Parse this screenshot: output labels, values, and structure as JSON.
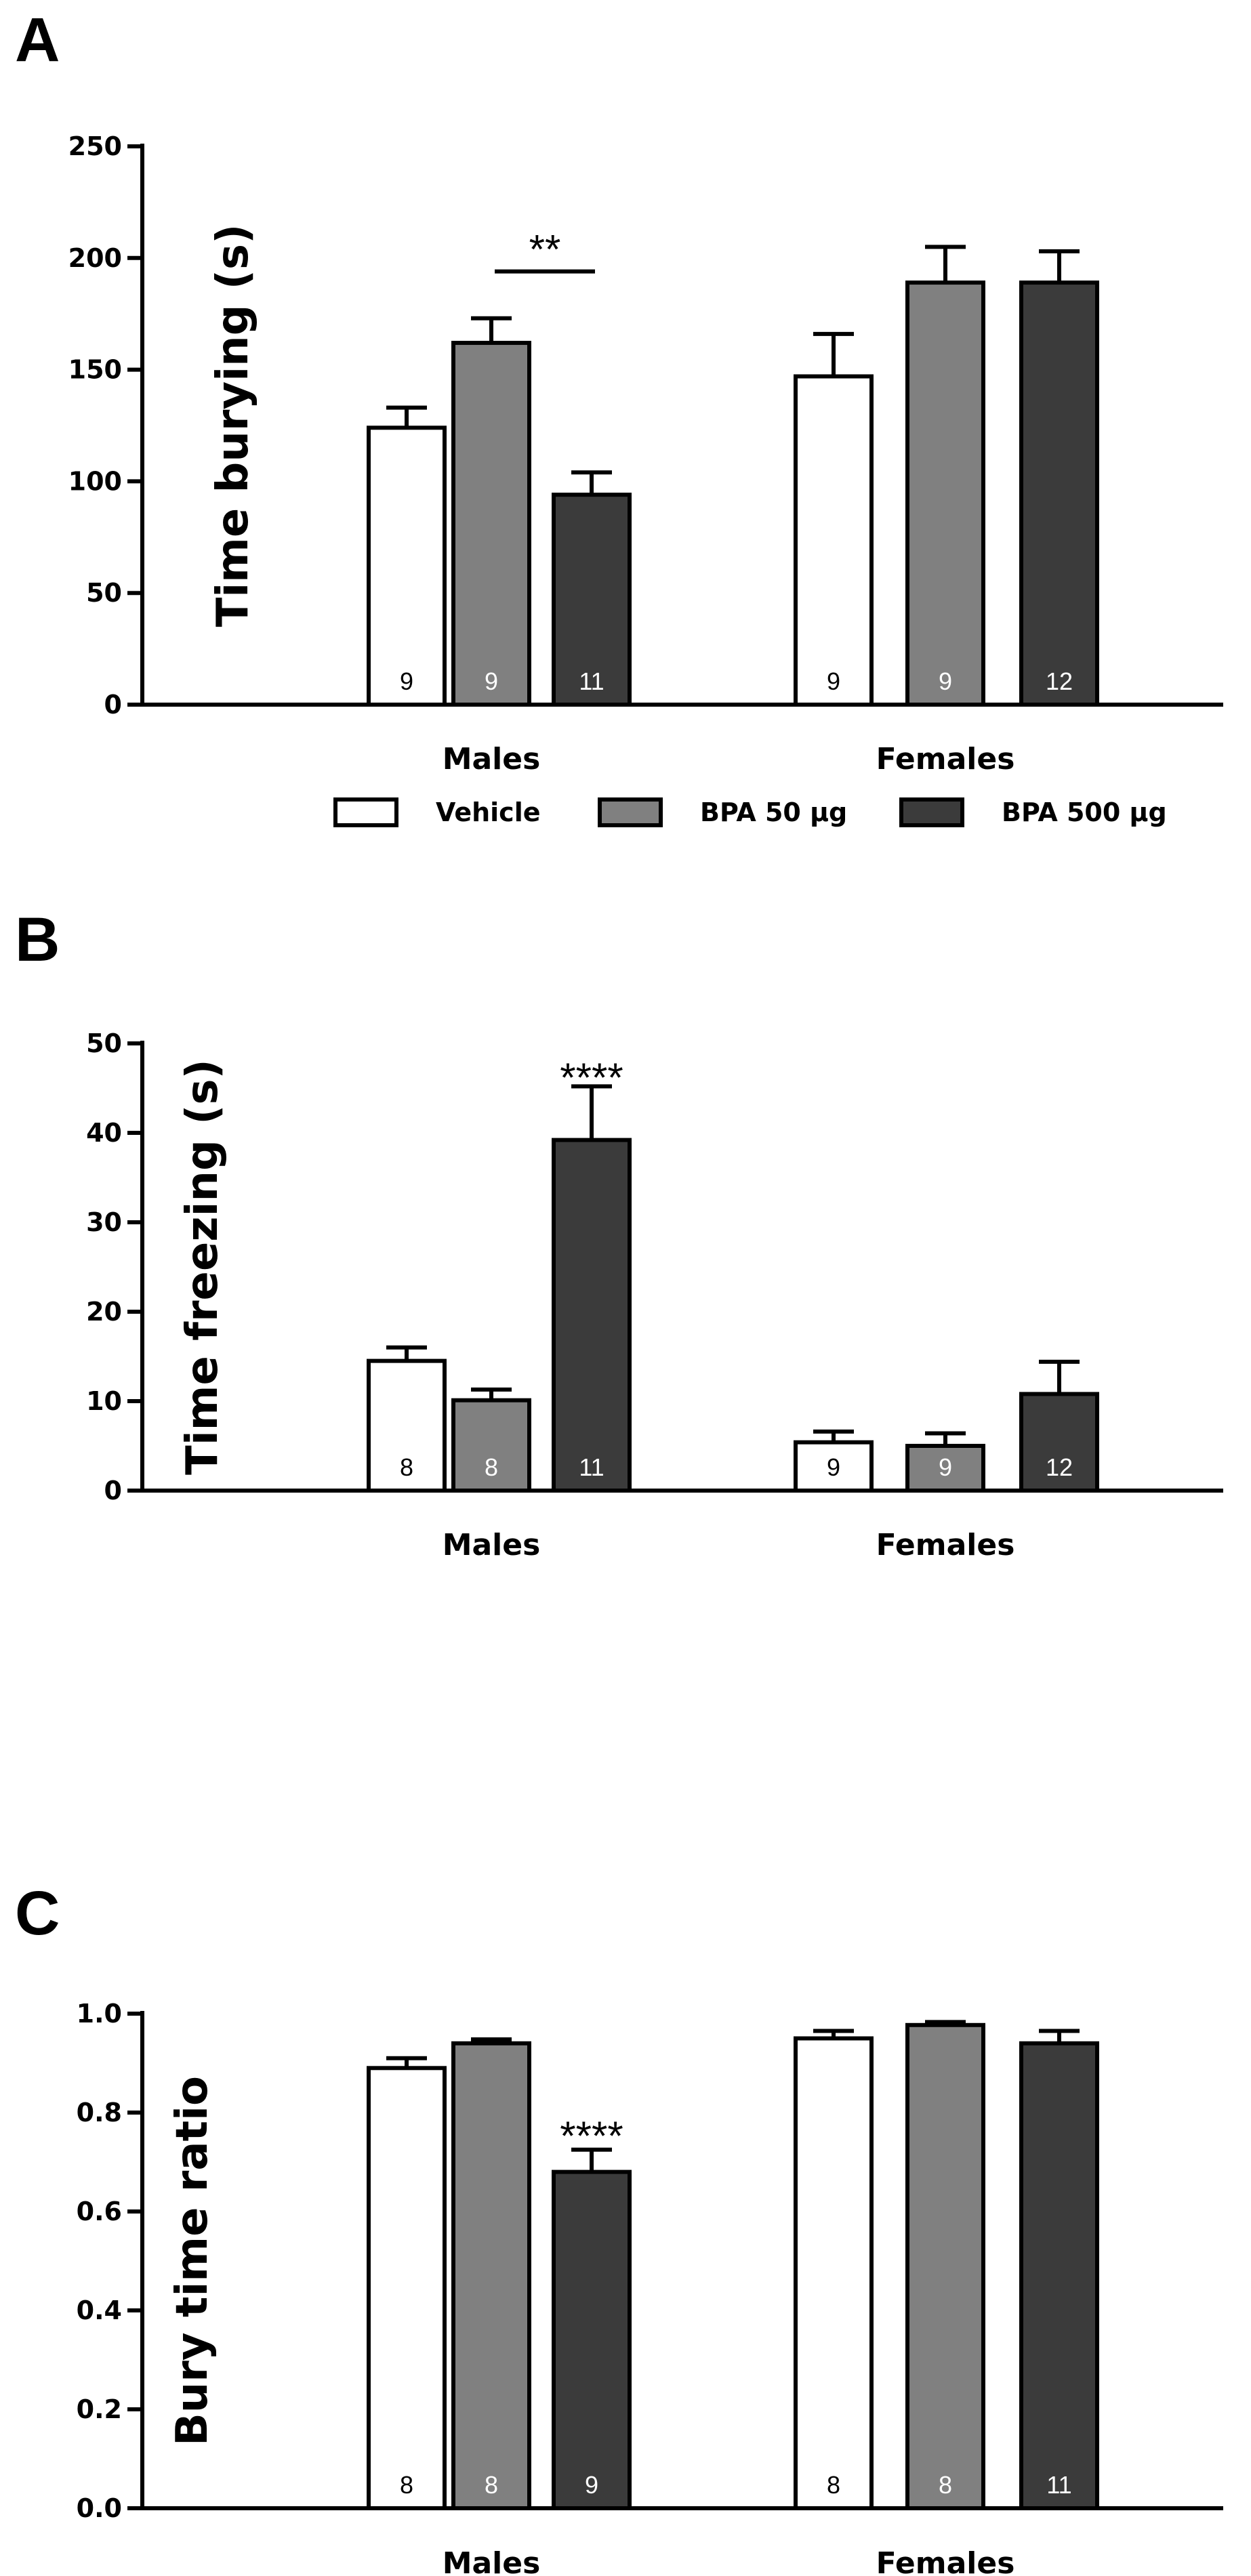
{
  "colors": {
    "vehicle": "#ffffff",
    "bpa50": "#808080",
    "bpa500": "#3b3b3b",
    "stroke": "#000000"
  },
  "legend": {
    "items": [
      {
        "label": "Vehicle",
        "color": "#ffffff"
      },
      {
        "label": "BPA 50 µg",
        "color": "#808080"
      },
      {
        "label": "BPA 500 µg",
        "color": "#3b3b3b"
      }
    ]
  },
  "chart_data": [
    {
      "panel": "A",
      "type": "bar",
      "ylabel": "Time burying (s)",
      "ylim": [
        0,
        250
      ],
      "yticks": [
        "0",
        "50",
        "100",
        "150",
        "200",
        "250"
      ],
      "categories": [
        "Males",
        "Females"
      ],
      "series": [
        {
          "name": "Vehicle",
          "values": [
            124,
            147
          ],
          "errors": [
            9,
            19
          ],
          "n": [
            "9",
            "9"
          ]
        },
        {
          "name": "BPA 50 µg",
          "values": [
            162,
            189
          ],
          "errors": [
            11,
            16
          ],
          "n": [
            "9",
            "9"
          ]
        },
        {
          "name": "BPA 500 µg",
          "values": [
            94,
            189
          ],
          "errors": [
            10,
            14
          ],
          "n": [
            "11",
            "12"
          ]
        }
      ],
      "annotations": [
        {
          "text": "**",
          "category": 0,
          "type": "bracket",
          "from_series": 1,
          "to_series": 2,
          "y": 194
        }
      ]
    },
    {
      "panel": "B",
      "type": "bar",
      "ylabel": "Time freezing (s)",
      "ylim": [
        0,
        50
      ],
      "yticks": [
        "0",
        "10",
        "20",
        "30",
        "40",
        "50"
      ],
      "categories": [
        "Males",
        "Females"
      ],
      "series": [
        {
          "name": "Vehicle",
          "values": [
            14.5,
            5.4
          ],
          "errors": [
            1.5,
            1.2
          ],
          "n": [
            "8",
            "9"
          ]
        },
        {
          "name": "BPA 50 µg",
          "values": [
            10.1,
            5.0
          ],
          "errors": [
            1.2,
            1.4
          ],
          "n": [
            "8",
            "9"
          ]
        },
        {
          "name": "BPA 500 µg",
          "values": [
            39.2,
            10.8
          ],
          "errors": [
            6.0,
            3.6
          ],
          "n": [
            "11",
            "12"
          ]
        }
      ],
      "annotations": [
        {
          "text": "****",
          "category": 0,
          "series": 2,
          "type": "above",
          "y": 46.3
        }
      ]
    },
    {
      "panel": "C",
      "type": "bar",
      "ylabel": "Bury time ratio",
      "ylim": [
        0,
        1.0
      ],
      "yticks": [
        "0.0",
        "0.2",
        "0.4",
        "0.6",
        "0.8",
        "1.0"
      ],
      "categories": [
        "Males",
        "Females"
      ],
      "series": [
        {
          "name": "Vehicle",
          "values": [
            0.89,
            0.95
          ],
          "errors": [
            0.02,
            0.015
          ],
          "n": [
            "8",
            "8"
          ]
        },
        {
          "name": "BPA 50 µg",
          "values": [
            0.94,
            0.977
          ],
          "errors": [
            0.008,
            0.006
          ],
          "n": [
            "8",
            "8"
          ]
        },
        {
          "name": "BPA 500 µg",
          "values": [
            0.68,
            0.94
          ],
          "errors": [
            0.045,
            0.025
          ],
          "n": [
            "9",
            "11"
          ]
        }
      ],
      "annotations": [
        {
          "text": "****",
          "category": 0,
          "series": 2,
          "type": "above",
          "y": 0.755
        }
      ]
    }
  ]
}
